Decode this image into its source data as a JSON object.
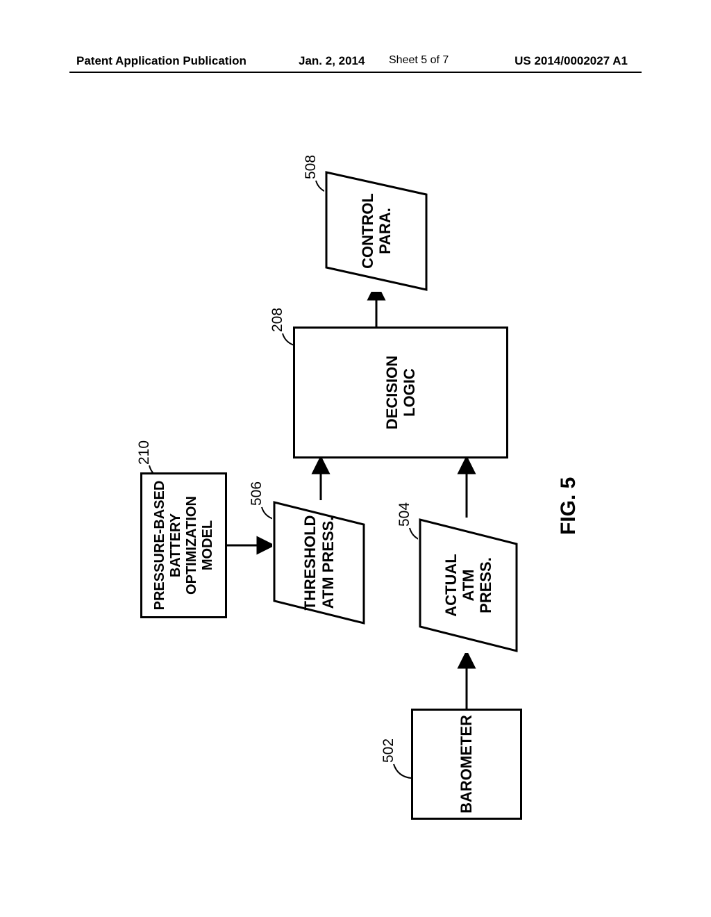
{
  "header": {
    "left": "Patent Application Publication",
    "date": "Jan. 2, 2014",
    "sheet": "Sheet 5 of 7",
    "pubno": "US 2014/0002027 A1"
  },
  "figure": {
    "caption": "FIG. 5",
    "nodes": {
      "barometer": {
        "ref": "502",
        "label": "BAROMETER"
      },
      "actual": {
        "ref": "504",
        "label": "ACTUAL\nATM\nPRESS."
      },
      "threshold": {
        "ref": "506",
        "label": "THRESHOLD\nATM PRESS."
      },
      "model": {
        "ref": "210",
        "label": "PRESSURE-BASED\nBATTERY\nOPTIMIZATION\nMODEL"
      },
      "decision": {
        "ref": "208",
        "label": "DECISION\nLOGIC"
      },
      "control": {
        "ref": "508",
        "label": "CONTROL\nPARA."
      }
    },
    "style": {
      "stroke": "#000000",
      "stroke_width": 3,
      "font_family": "Arial",
      "font_size_pt": 16,
      "bg": "#ffffff"
    },
    "layout_note": "landscape flowchart rotated -90deg on portrait page",
    "edges": [
      [
        "barometer",
        "actual"
      ],
      [
        "actual",
        "decision"
      ],
      [
        "model",
        "threshold"
      ],
      [
        "threshold",
        "decision"
      ],
      [
        "decision",
        "control"
      ]
    ]
  }
}
